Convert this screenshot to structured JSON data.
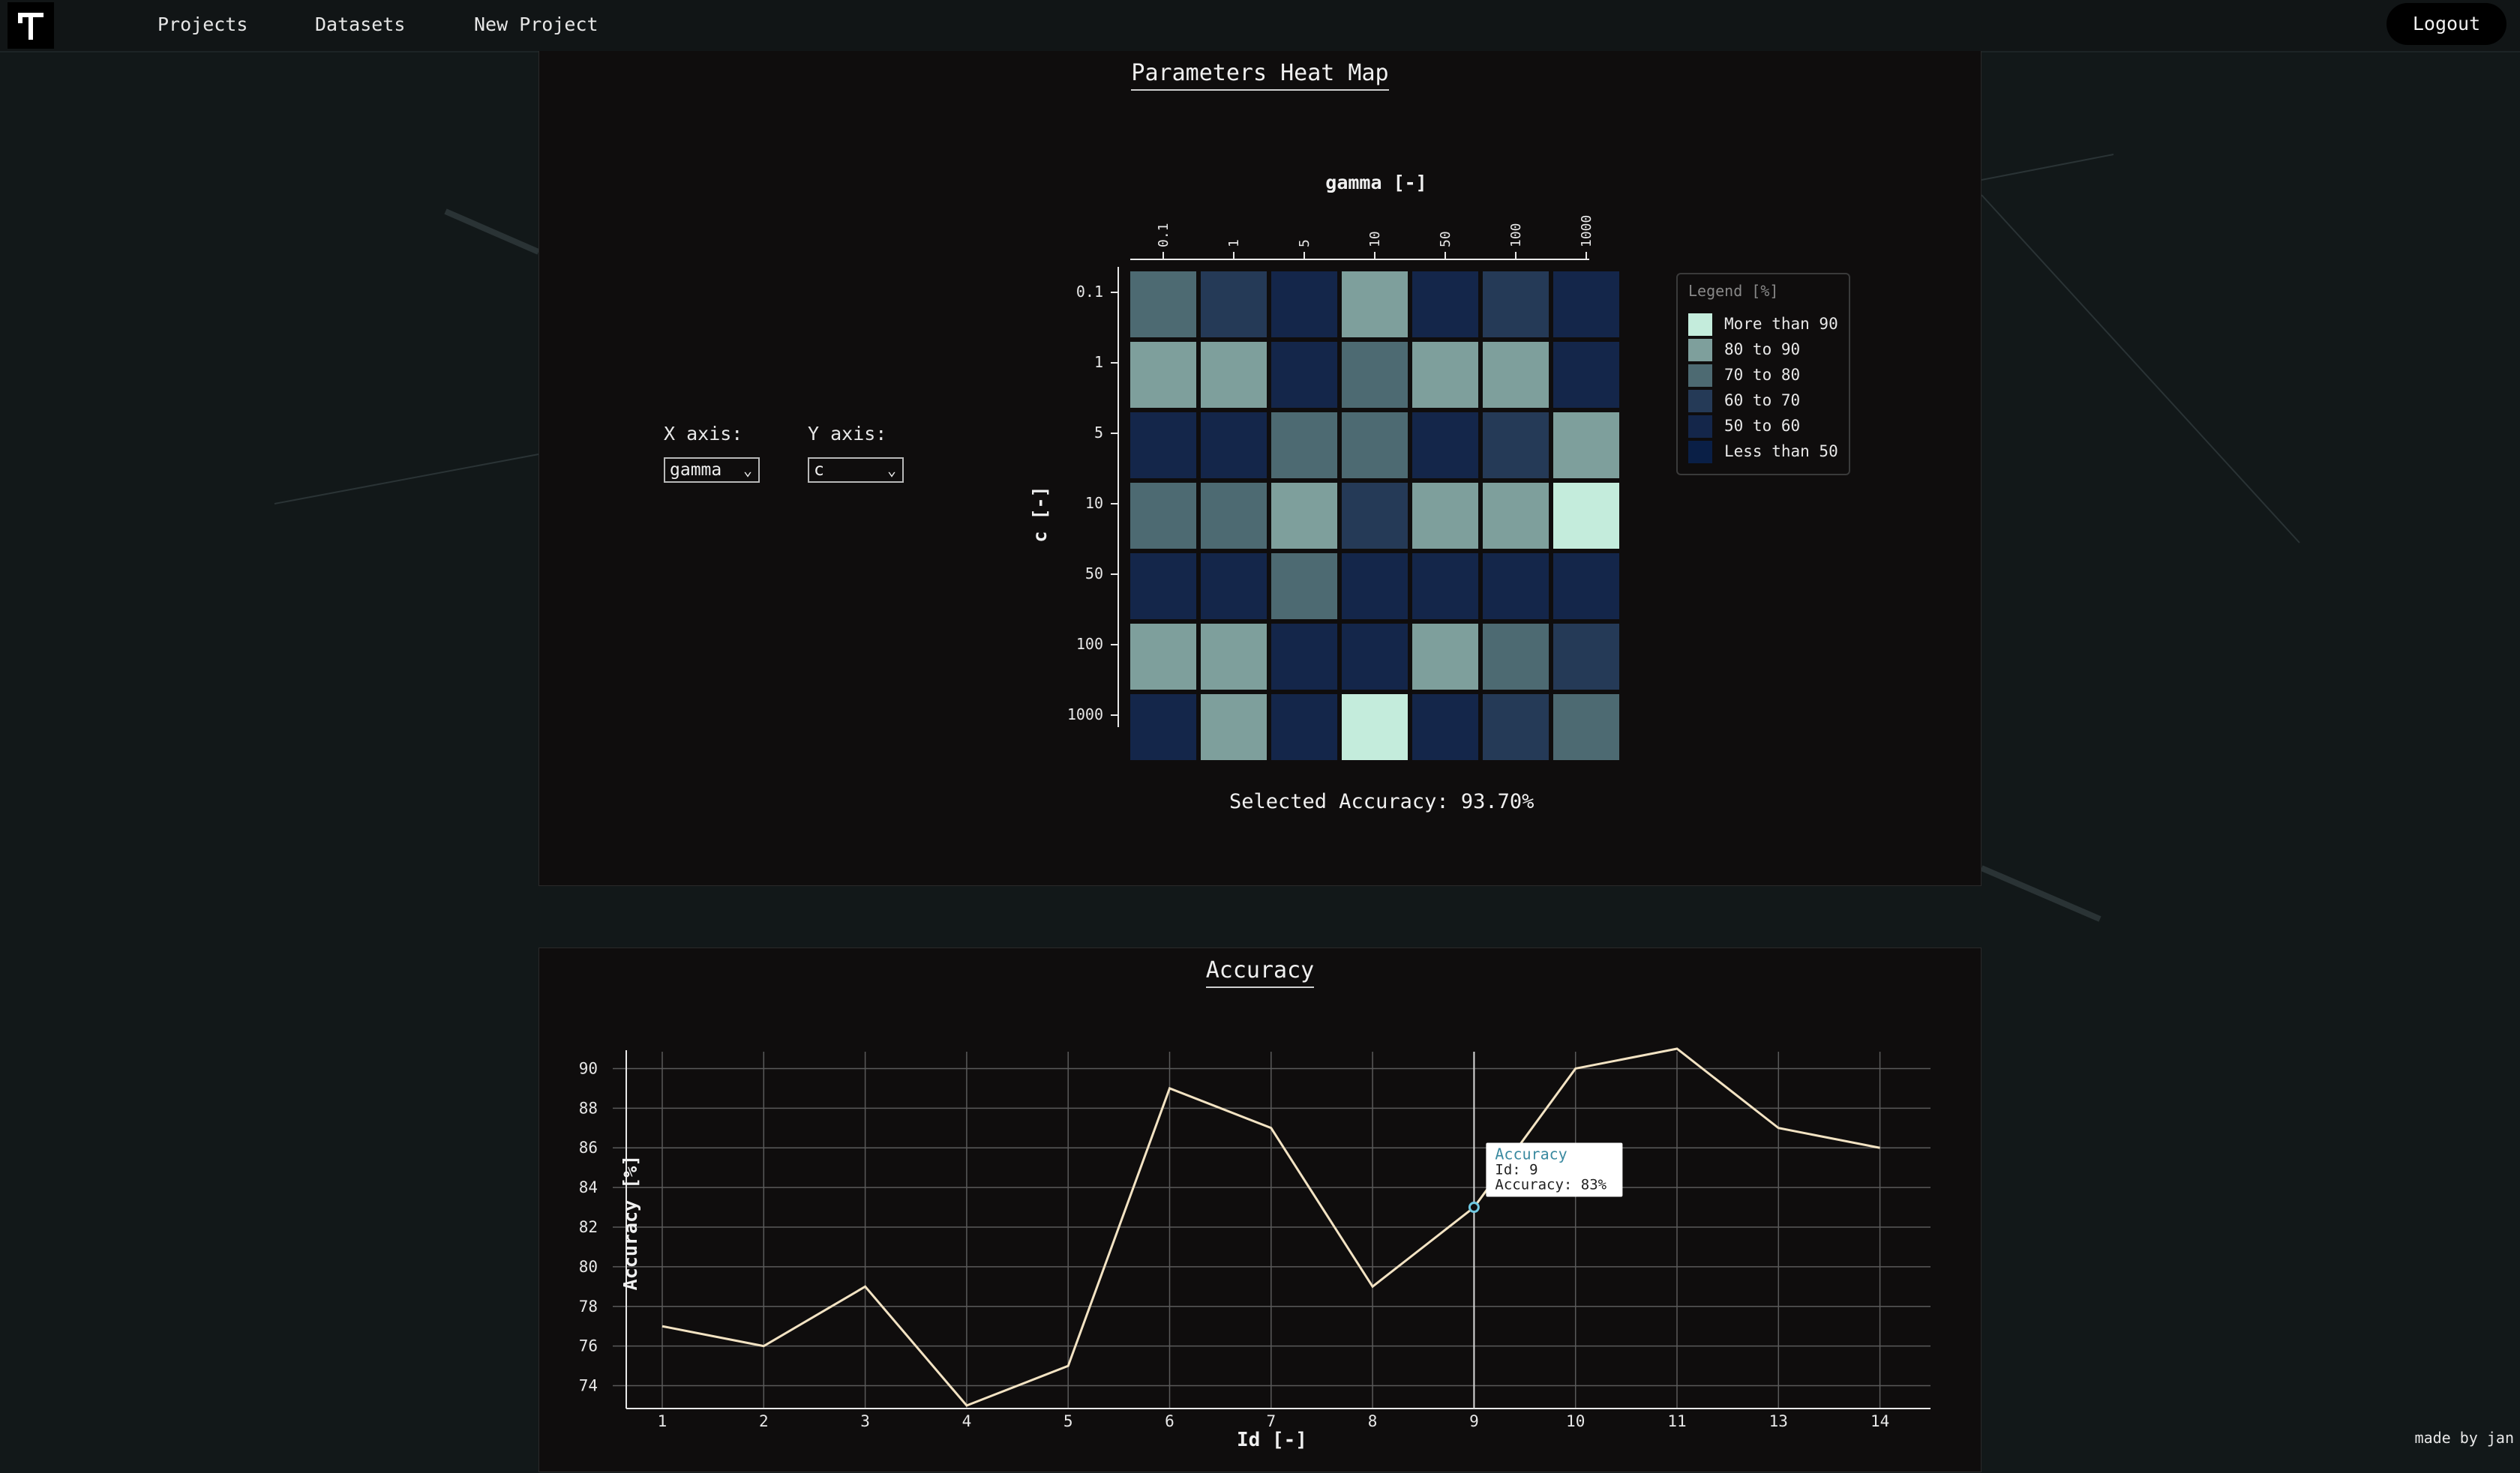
{
  "nav": {
    "links": [
      "Projects",
      "Datasets",
      "New Project"
    ],
    "logout": "Logout"
  },
  "heatmap_panel": {
    "title": "Parameters Heat Map",
    "x_axis_label": "X axis:",
    "y_axis_label": "Y axis:",
    "x_axis_value": "gamma",
    "y_axis_value": "c",
    "selected_accuracy": "Selected Accuracy: 93.70%"
  },
  "legend": {
    "title": "Legend [%]",
    "items": [
      {
        "label": "More than 90",
        "color": "#c4ecdc"
      },
      {
        "label": "80 to 90",
        "color": "#7e9f9c"
      },
      {
        "label": "70 to 80",
        "color": "#4d6a72"
      },
      {
        "label": "60 to 70",
        "color": "#253a57"
      },
      {
        "label": "50 to 60",
        "color": "#14264a"
      },
      {
        "label": "Less than 50",
        "color": "#0a1f46"
      }
    ]
  },
  "accuracy_panel": {
    "title": "Accuracy"
  },
  "tooltip": {
    "series": "Accuracy",
    "id_line": "Id: 9",
    "value_line": "Accuracy: 83%"
  },
  "footer": {
    "made_by": "made by jan"
  },
  "chart_data": [
    {
      "type": "heatmap",
      "xlabel": "gamma [-]",
      "ylabel": "c [-]",
      "x_categories": [
        "0.1",
        "1",
        "5",
        "10",
        "50",
        "100",
        "1000"
      ],
      "y_categories": [
        "0.1",
        "1",
        "5",
        "10",
        "50",
        "100",
        "1000"
      ],
      "color_classes": [
        "More than 90",
        "80 to 90",
        "70 to 80",
        "60 to 70",
        "50 to 60",
        "Less than 50"
      ],
      "cells": [
        [
          2,
          3,
          4,
          1,
          4,
          3,
          4
        ],
        [
          1,
          1,
          4,
          2,
          1,
          1,
          4
        ],
        [
          4,
          4,
          2,
          2,
          4,
          3,
          1
        ],
        [
          2,
          2,
          1,
          3,
          1,
          1,
          0
        ],
        [
          4,
          4,
          2,
          4,
          4,
          4,
          4
        ],
        [
          1,
          1,
          4,
          4,
          1,
          2,
          3
        ],
        [
          4,
          1,
          4,
          0,
          4,
          3,
          2
        ]
      ]
    },
    {
      "type": "line",
      "title": "Accuracy",
      "xlabel": "Id [-]",
      "ylabel": "Accuracy [%]",
      "x": [
        1,
        2,
        3,
        4,
        5,
        6,
        7,
        8,
        9,
        10,
        11,
        13,
        14
      ],
      "yticks": [
        74,
        76,
        78,
        80,
        82,
        84,
        86,
        88,
        90
      ],
      "ylim": [
        73,
        91
      ],
      "grid": true,
      "series": [
        {
          "name": "Accuracy",
          "values": [
            77,
            76,
            79,
            73,
            75,
            89,
            87,
            79,
            83,
            90,
            91,
            87,
            86
          ]
        }
      ],
      "highlight_index": 8
    }
  ]
}
